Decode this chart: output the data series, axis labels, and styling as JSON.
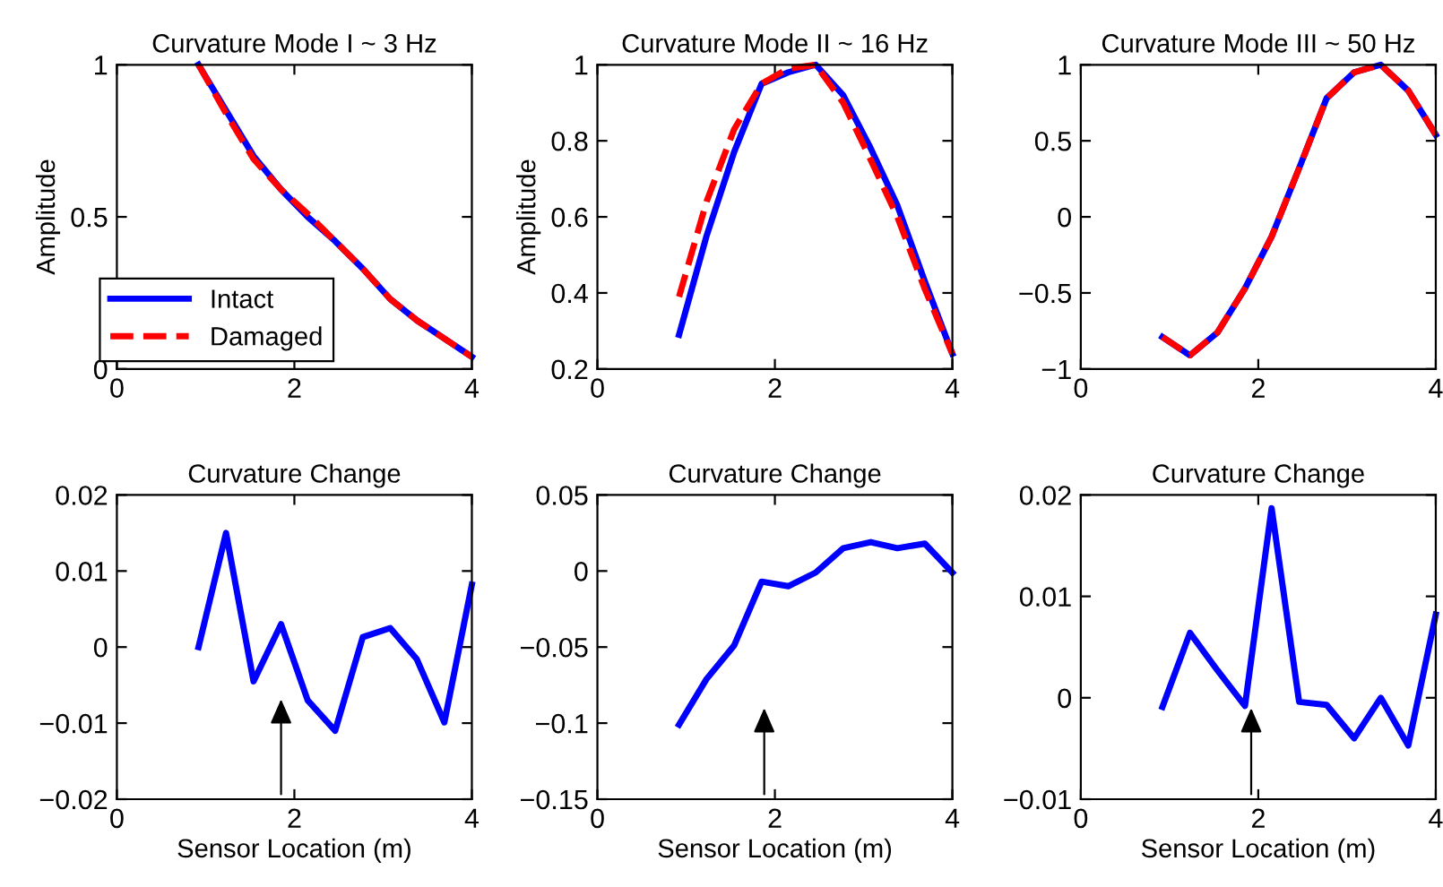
{
  "chart_data": [
    {
      "type": "line",
      "title": "Curvature Mode I ~ 3 Hz",
      "ylabel": "Amplitude",
      "x": [
        0.92,
        1.23,
        1.54,
        1.85,
        2.15,
        2.46,
        2.77,
        3.08,
        3.38,
        3.69,
        4.0
      ],
      "xlim": [
        0,
        4
      ],
      "xticks": [
        0,
        2,
        4
      ],
      "ylim": [
        0,
        1
      ],
      "yticks": [
        0,
        0.5,
        1
      ],
      "legend": "bottom left",
      "grid": false,
      "series": [
        {
          "name": "Intact",
          "color": "#0000ff",
          "line_style": "solid",
          "values": [
            1.0,
            0.85,
            0.7,
            0.59,
            0.5,
            0.42,
            0.33,
            0.23,
            0.16,
            0.1,
            0.04
          ]
        },
        {
          "name": "Damaged",
          "color": "#ff0000",
          "line_style": "dashed",
          "values": [
            1.0,
            0.84,
            0.69,
            0.59,
            0.51,
            0.42,
            0.33,
            0.23,
            0.16,
            0.1,
            0.04
          ]
        }
      ]
    },
    {
      "type": "line",
      "title": "Curvature Mode II ~ 16 Hz",
      "ylabel": "Amplitude",
      "x": [
        0.92,
        1.23,
        1.54,
        1.85,
        2.15,
        2.46,
        2.77,
        3.08,
        3.38,
        3.69,
        4.0
      ],
      "xlim": [
        0,
        4
      ],
      "xticks": [
        0,
        2,
        4
      ],
      "ylim": [
        0.2,
        1
      ],
      "yticks": [
        0.2,
        0.4,
        0.6,
        0.8,
        1
      ],
      "grid": false,
      "series": [
        {
          "color": "#0000ff",
          "line_style": "solid",
          "values": [
            0.29,
            0.55,
            0.77,
            0.95,
            0.98,
            1.0,
            0.92,
            0.78,
            0.63,
            0.43,
            0.24
          ]
        },
        {
          "color": "#ff0000",
          "line_style": "dashed",
          "values": [
            0.39,
            0.64,
            0.83,
            0.95,
            0.99,
            1.0,
            0.9,
            0.75,
            0.6,
            0.41,
            0.24
          ]
        }
      ]
    },
    {
      "type": "line",
      "title": "Curvature Mode III ~ 50 Hz",
      "x": [
        0.92,
        1.23,
        1.54,
        1.85,
        2.15,
        2.46,
        2.77,
        3.08,
        3.38,
        3.69,
        4.0
      ],
      "xlim": [
        0,
        4
      ],
      "xticks": [
        0,
        2,
        4
      ],
      "ylim": [
        -1,
        1
      ],
      "yticks": [
        -1,
        -0.5,
        0,
        0.5,
        1
      ],
      "grid": false,
      "series": [
        {
          "color": "#0000ff",
          "line_style": "solid",
          "values": [
            -0.79,
            -0.91,
            -0.76,
            -0.47,
            -0.13,
            0.32,
            0.78,
            0.95,
            1.0,
            0.83,
            0.54
          ]
        },
        {
          "color": "#ff0000",
          "line_style": "dashed",
          "values": [
            -0.79,
            -0.91,
            -0.76,
            -0.47,
            -0.13,
            0.32,
            0.78,
            0.95,
            1.0,
            0.83,
            0.54
          ]
        }
      ]
    },
    {
      "type": "line",
      "title": "Curvature Change",
      "xlabel": "Sensor Location (m)",
      "x": [
        0.92,
        1.23,
        1.54,
        1.85,
        2.15,
        2.46,
        2.77,
        3.08,
        3.38,
        3.69,
        4.0
      ],
      "xlim": [
        0,
        4
      ],
      "xticks": [
        0,
        2,
        4
      ],
      "ylim": [
        -0.02,
        0.02
      ],
      "yticks": [
        -0.02,
        -0.01,
        0,
        0.01,
        0.02
      ],
      "grid": false,
      "series": [
        {
          "color": "#0000ff",
          "line_style": "solid",
          "values": [
            0.0,
            0.015,
            -0.0045,
            0.003,
            -0.007,
            -0.011,
            0.0013,
            0.0025,
            -0.0016,
            -0.0099,
            0.0082
          ]
        }
      ]
    },
    {
      "type": "line",
      "title": "Curvature Change",
      "xlabel": "Sensor Location (m)",
      "x": [
        0.92,
        1.23,
        1.54,
        1.85,
        2.15,
        2.46,
        2.77,
        3.08,
        3.38,
        3.69,
        4.0
      ],
      "xlim": [
        0,
        4
      ],
      "xticks": [
        0,
        2,
        4
      ],
      "ylim": [
        -0.15,
        0.05
      ],
      "yticks": [
        -0.15,
        -0.1,
        -0.05,
        0,
        0.05
      ],
      "grid": false,
      "series": [
        {
          "color": "#0000ff",
          "line_style": "solid",
          "values": [
            -0.101,
            -0.071,
            -0.049,
            -0.007,
            -0.01,
            -0.001,
            0.015,
            0.019,
            0.015,
            0.018,
            -0.001
          ]
        }
      ]
    },
    {
      "type": "line",
      "title": "Curvature Change",
      "xlabel": "Sensor Location (m)",
      "x": [
        0.92,
        1.23,
        1.54,
        1.85,
        2.15,
        2.46,
        2.77,
        3.08,
        3.38,
        3.69,
        4.0
      ],
      "xlim": [
        0,
        4
      ],
      "xticks": [
        0,
        2,
        4
      ],
      "ylim": [
        -0.01,
        0.02
      ],
      "yticks": [
        -0.01,
        0,
        0.01,
        0.02
      ],
      "grid": false,
      "series": [
        {
          "color": "#0000ff",
          "line_style": "solid",
          "values": [
            -0.0009,
            0.0064,
            0.0027,
            -0.0008,
            0.0187,
            -0.0004,
            -0.0007,
            -0.004,
            0.0,
            -0.0047,
            0.0082
          ]
        }
      ]
    }
  ]
}
